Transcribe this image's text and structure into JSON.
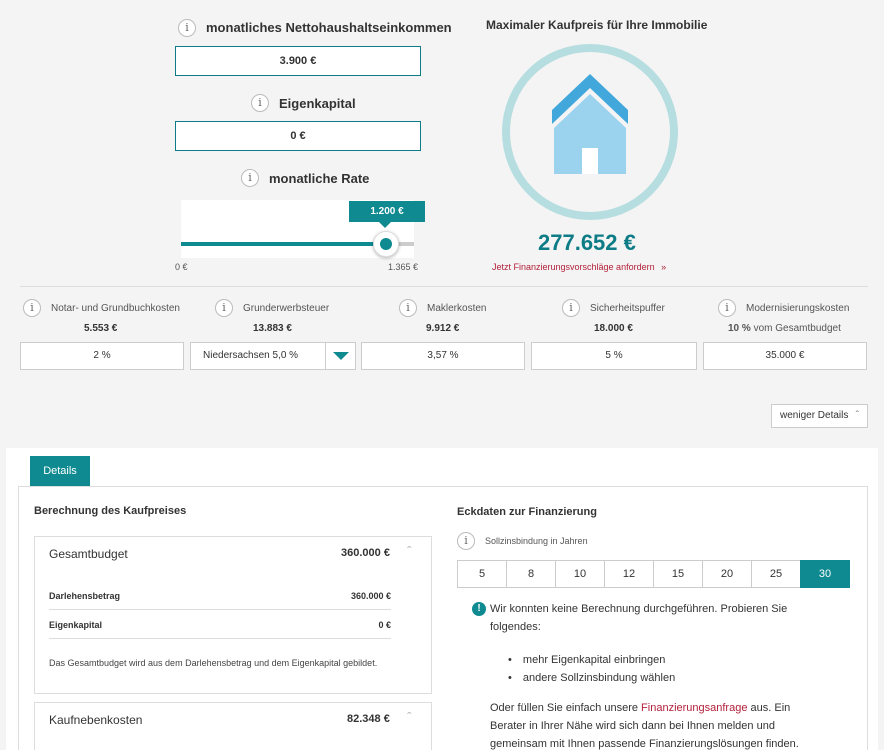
{
  "income": {
    "label": "monatliches Nettohaushaltseinkommen",
    "value": "3.900 €"
  },
  "equity": {
    "label": "Eigenkapital",
    "value": "0 €"
  },
  "rate": {
    "label": "monatliche Rate",
    "tooltip": "1.200 €",
    "min": "0 €",
    "max": "1.365 €",
    "fraction": 0.88
  },
  "result": {
    "title": "Maximaler Kaufpreis für Ihre Immobilie",
    "price": "277.652 €",
    "link": "Jetzt Finanzierungsvorschläge anfordern",
    "link_arrow": "»"
  },
  "costs": [
    {
      "title": "Notar- und Grundbuchkosten",
      "amount": "5.553 €",
      "input": "2 %"
    },
    {
      "title": "Grunderwerbsteuer",
      "amount": "13.883 €",
      "input": "Niedersachsen 5,0 %"
    },
    {
      "title": "Maklerkosten",
      "amount": "9.912 €",
      "input": "3,57 %"
    },
    {
      "title": "Sicherheitspuffer",
      "amount": "18.000 €",
      "input": "5 %"
    },
    {
      "title": "Modernisierungskosten",
      "amount_bold": "10 %",
      "amount_rest": "vom Gesamtbudget",
      "input": "35.000 €"
    }
  ],
  "less_details": "weniger Details",
  "tab_details": "Details",
  "calc": {
    "title": "Berechnung des Kaufpreises",
    "total": {
      "label": "Gesamtbudget",
      "value": "360.000 €"
    },
    "loan": {
      "label": "Darlehensbetrag",
      "value": "360.000 €"
    },
    "equity": {
      "label": "Eigenkapital",
      "value": "0 €"
    },
    "note": "Das Gesamtbudget wird aus dem Darlehensbetrag und dem Eigenkapital gebildet.",
    "side": {
      "label": "Kaufnebenkosten",
      "value": "82.348 €"
    }
  },
  "finance": {
    "title": "Eckdaten zur Finanzierung",
    "fixed_label": "Sollzinsbindung in Jahren",
    "years": [
      "5",
      "8",
      "10",
      "12",
      "15",
      "20",
      "25",
      "30"
    ],
    "selected_year": "30",
    "warn": "Wir konnten keine Berechnung durchgeführen. Probieren Sie folgendes:",
    "bullets": [
      "mehr Eigenkapital einbringen",
      "andere Sollzinsbindung wählen"
    ],
    "p_before": "Oder füllen Sie einfach unsere",
    "p_link": "Finanzierungsanfrage",
    "p_after": "aus. Ein Berater in Ihrer Nähe wird sich dann bei Ihnen melden und gemeinsam mit Ihnen passende Finanzierungslösungen finden."
  },
  "colors": {
    "teal": "#0e8a90",
    "ring": "#b6dde0",
    "roof": "#42a8dc",
    "house": "#9bd3ef",
    "link_red": "#b3203a"
  }
}
